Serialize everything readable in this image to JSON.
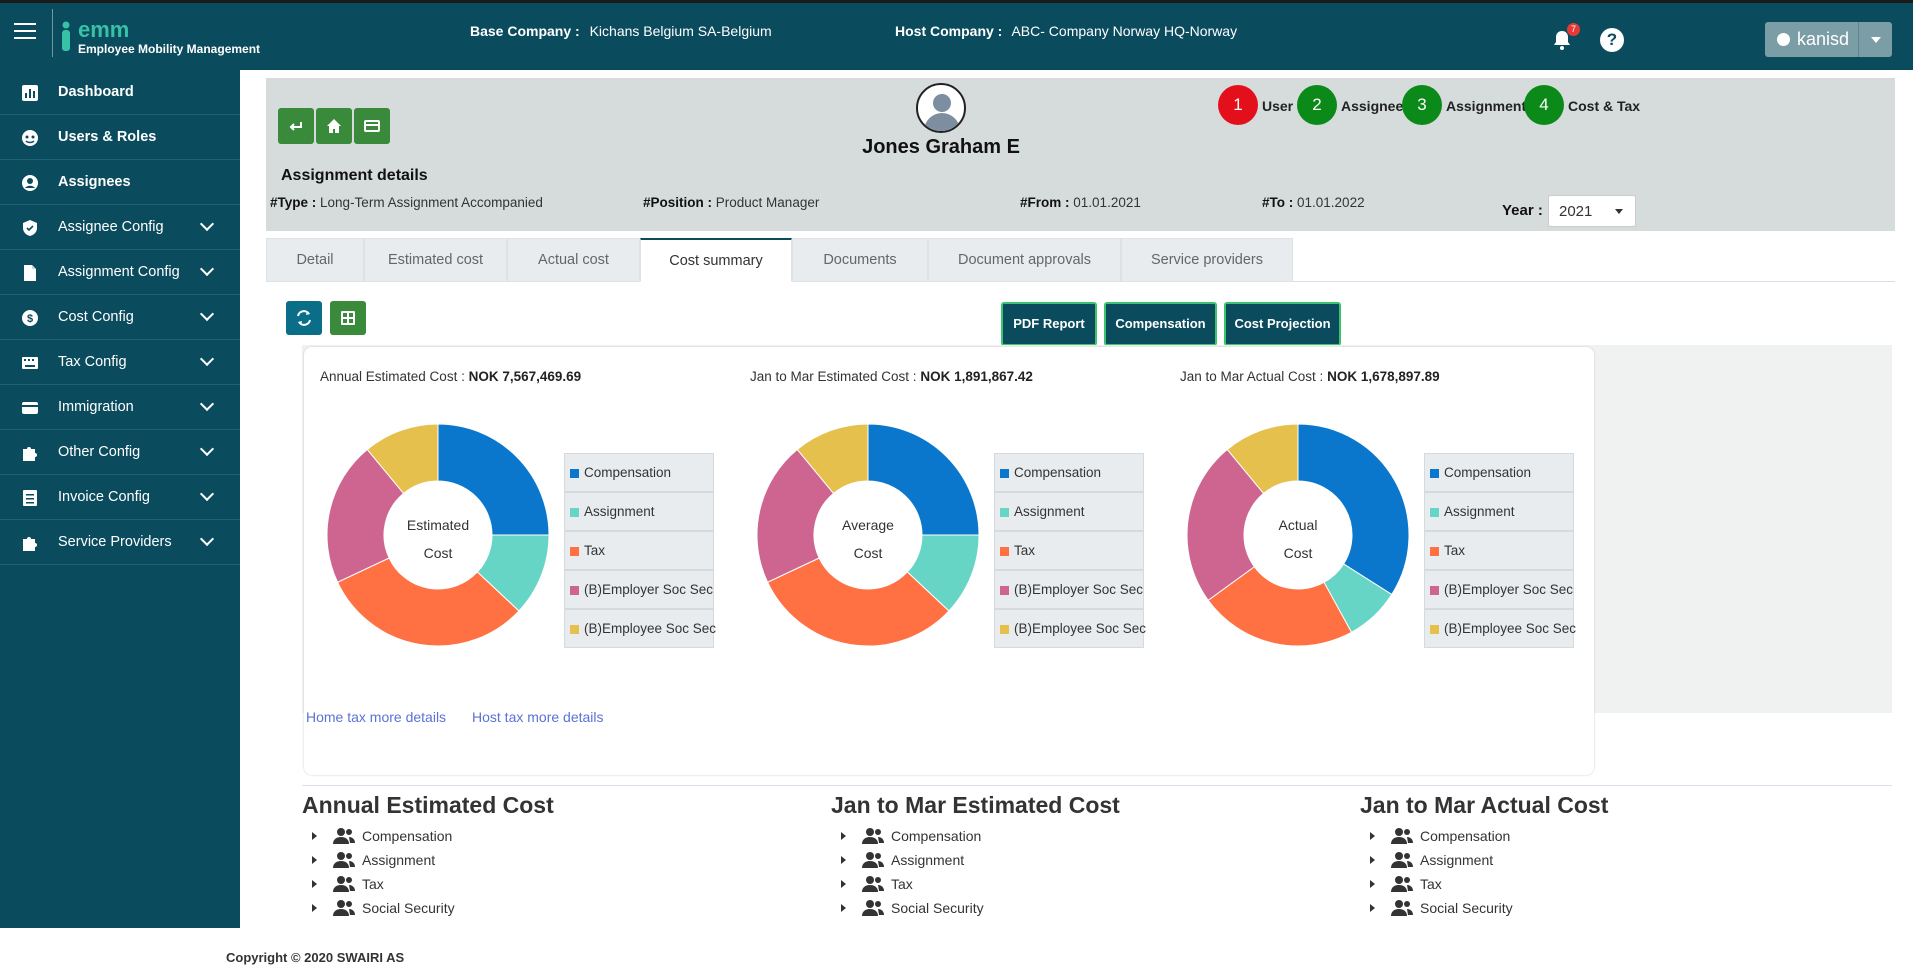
{
  "app": {
    "logo_text": "emm",
    "subtitle": "Employee Mobility Management"
  },
  "topbar": {
    "base_company_label": "Base Company :",
    "base_company_value": "Kichans Belgium SA-Belgium",
    "host_company_label": "Host Company :",
    "host_company_value": "ABC- Company Norway HQ-Norway",
    "notification_count": "7",
    "help_glyph": "?",
    "username": "kanisd"
  },
  "sidebar": {
    "items": [
      {
        "label": "Dashboard",
        "icon": "chart-icon"
      },
      {
        "label": "Users & Roles",
        "icon": "users-icon"
      },
      {
        "label": "Assignees",
        "icon": "user-circle-icon"
      },
      {
        "label": "Assignee Config",
        "icon": "shield-icon"
      },
      {
        "label": "Assignment Config",
        "icon": "document-icon"
      },
      {
        "label": "Cost Config",
        "icon": "dollar-icon"
      },
      {
        "label": "Tax Config",
        "icon": "keyboard-icon"
      },
      {
        "label": "Immigration",
        "icon": "card-icon"
      },
      {
        "label": "Other Config",
        "icon": "puzzle-icon"
      },
      {
        "label": "Invoice Config",
        "icon": "list-icon"
      },
      {
        "label": "Service Providers",
        "icon": "puzzle-icon"
      }
    ]
  },
  "header": {
    "person_name": "Jones Graham E",
    "steps": [
      {
        "num": "1",
        "label": "User",
        "color": "#e3101b"
      },
      {
        "num": "2",
        "label": "Assignee",
        "color": "#0b8a1a"
      },
      {
        "num": "3",
        "label": "Assignment",
        "color": "#0b8a1a"
      },
      {
        "num": "4",
        "label": "Cost & Tax",
        "color": "#0b8a1a"
      }
    ],
    "section_title": "Assignment details",
    "type_label": "#Type :",
    "type_value": "Long-Term Assignment Accompanied",
    "position_label": "#Position :",
    "position_value": "Product Manager",
    "from_label": "#From :",
    "from_value": "01.01.2021",
    "to_label": "#To :",
    "to_value": "01.01.2022",
    "year_label": "Year :",
    "year_value": "2021"
  },
  "tabs": [
    {
      "label": "Detail"
    },
    {
      "label": "Estimated cost"
    },
    {
      "label": "Actual cost"
    },
    {
      "label": "Cost summary"
    },
    {
      "label": "Documents"
    },
    {
      "label": "Document approvals"
    },
    {
      "label": "Service providers"
    }
  ],
  "actions": {
    "pdf_report": "PDF Report",
    "compensation": "Compensation",
    "cost_projection": "Cost Projection"
  },
  "kpis": {
    "annual_label": "Annual Estimated Cost :",
    "annual_value": "NOK 7,567,469.69",
    "q_est_label": "Jan to Mar Estimated Cost :",
    "q_est_value": "NOK 1,891,867.42",
    "q_act_label": "Jan to Mar Actual Cost :",
    "q_act_value": "NOK 1,678,897.89"
  },
  "legend": [
    "Compensation",
    "Assignment",
    "Tax",
    "(B)Employer Soc Sec",
    "(B)Employee Soc Sec"
  ],
  "colors": {
    "compensation": "#0a77cd",
    "assignment": "#67d5c6",
    "tax": "#ff7043",
    "employer": "#cd6590",
    "employee": "#e6c04c",
    "primary": "#0b4b5e",
    "green": "#3a8a3c"
  },
  "chart_data": [
    {
      "type": "pie",
      "center_lines": [
        "Estimated",
        "Cost"
      ],
      "categories": [
        "Compensation",
        "Assignment",
        "Tax",
        "(B)Employer Soc Sec",
        "(B)Employee Soc Sec"
      ],
      "values": [
        25,
        12,
        31,
        21,
        11
      ]
    },
    {
      "type": "pie",
      "center_lines": [
        "Average",
        "Cost"
      ],
      "categories": [
        "Compensation",
        "Assignment",
        "Tax",
        "(B)Employer Soc Sec",
        "(B)Employee Soc Sec"
      ],
      "values": [
        25,
        12,
        31,
        21,
        11
      ]
    },
    {
      "type": "pie",
      "center_lines": [
        "Actual",
        "Cost"
      ],
      "categories": [
        "Compensation",
        "Assignment",
        "Tax",
        "(B)Employer Soc Sec",
        "(B)Employee Soc Sec"
      ],
      "values": [
        34,
        8,
        23,
        24,
        11
      ]
    }
  ],
  "links": {
    "home_tax": "Home tax more details",
    "host_tax": "Host tax more details"
  },
  "summaries": [
    {
      "title": "Annual Estimated Cost",
      "rows": [
        "Compensation",
        "Assignment",
        "Tax",
        "Social Security"
      ]
    },
    {
      "title": "Jan to Mar Estimated Cost",
      "rows": [
        "Compensation",
        "Assignment",
        "Tax",
        "Social Security"
      ]
    },
    {
      "title": "Jan to Mar Actual Cost",
      "rows": [
        "Compensation",
        "Assignment",
        "Tax",
        "Social Security"
      ]
    }
  ],
  "footer": {
    "copyright": "Copyright © 2020 SWAIRI AS"
  }
}
